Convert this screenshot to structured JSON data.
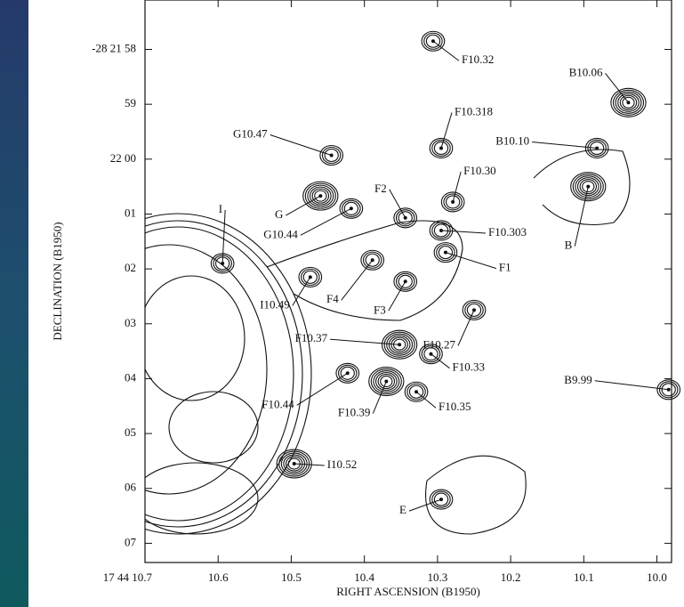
{
  "chart_data": {
    "type": "contour",
    "x_label": "RIGHT ASCENSION (B1950)",
    "y_label": "DECLINATION (B1950)",
    "xlim": [
      10.7,
      9.98
    ],
    "ylim": [
      57.1,
      67.35
    ],
    "xticks": [
      {
        "value": 10.7,
        "label": "17 44 10.7"
      },
      10.6,
      10.5,
      10.4,
      10.3,
      10.2,
      10.1,
      {
        "value": 10,
        "label": "10.0"
      }
    ],
    "yticks": [
      {
        "value": 58,
        "label": "-28 21 58"
      },
      59,
      {
        "value": 60,
        "label": "22 00"
      },
      {
        "value": 61,
        "label": "01"
      },
      {
        "value": 62,
        "label": "02"
      },
      {
        "value": 63,
        "label": "03"
      },
      {
        "value": 64,
        "label": "04"
      },
      {
        "value": 65,
        "label": "05"
      },
      {
        "value": 66,
        "label": "06"
      },
      {
        "value": 67,
        "label": "07"
      }
    ],
    "sources": [
      {
        "name": "F10.32",
        "x": 10.306,
        "y": 57.85
      },
      {
        "name": "B10.06",
        "x": 10.039,
        "y": 58.97
      },
      {
        "name": "F10.318",
        "x": 10.295,
        "y": 59.8
      },
      {
        "name": "G10.47",
        "x": 10.445,
        "y": 59.93
      },
      {
        "name": "B10.10",
        "x": 10.082,
        "y": 59.8
      },
      {
        "name": "G",
        "x": 10.46,
        "y": 60.67
      },
      {
        "name": "G10.44",
        "x": 10.418,
        "y": 60.9
      },
      {
        "name": "F10.30",
        "x": 10.279,
        "y": 60.78
      },
      {
        "name": "F2",
        "x": 10.344,
        "y": 61.07
      },
      {
        "name": "F10.303",
        "x": 10.295,
        "y": 61.3
      },
      {
        "name": "B",
        "x": 10.094,
        "y": 60.5
      },
      {
        "name": "F1",
        "x": 10.289,
        "y": 61.7
      },
      {
        "name": "I",
        "x": 10.594,
        "y": 61.9
      },
      {
        "name": "I10.49",
        "x": 10.474,
        "y": 62.15
      },
      {
        "name": "F4",
        "x": 10.389,
        "y": 61.84
      },
      {
        "name": "F3",
        "x": 10.344,
        "y": 62.23
      },
      {
        "name": "F10.27",
        "x": 10.25,
        "y": 62.75
      },
      {
        "name": "F10.37",
        "x": 10.352,
        "y": 63.38
      },
      {
        "name": "F10.33",
        "x": 10.309,
        "y": 63.55
      },
      {
        "name": "F10.44",
        "x": 10.423,
        "y": 63.9
      },
      {
        "name": "F10.39",
        "x": 10.37,
        "y": 64.05
      },
      {
        "name": "B9.99",
        "x": 9.984,
        "y": 64.2
      },
      {
        "name": "F10.35",
        "x": 10.329,
        "y": 64.24
      },
      {
        "name": "I10.52",
        "x": 10.496,
        "y": 65.55
      },
      {
        "name": "E",
        "x": 10.295,
        "y": 66.2
      }
    ]
  }
}
